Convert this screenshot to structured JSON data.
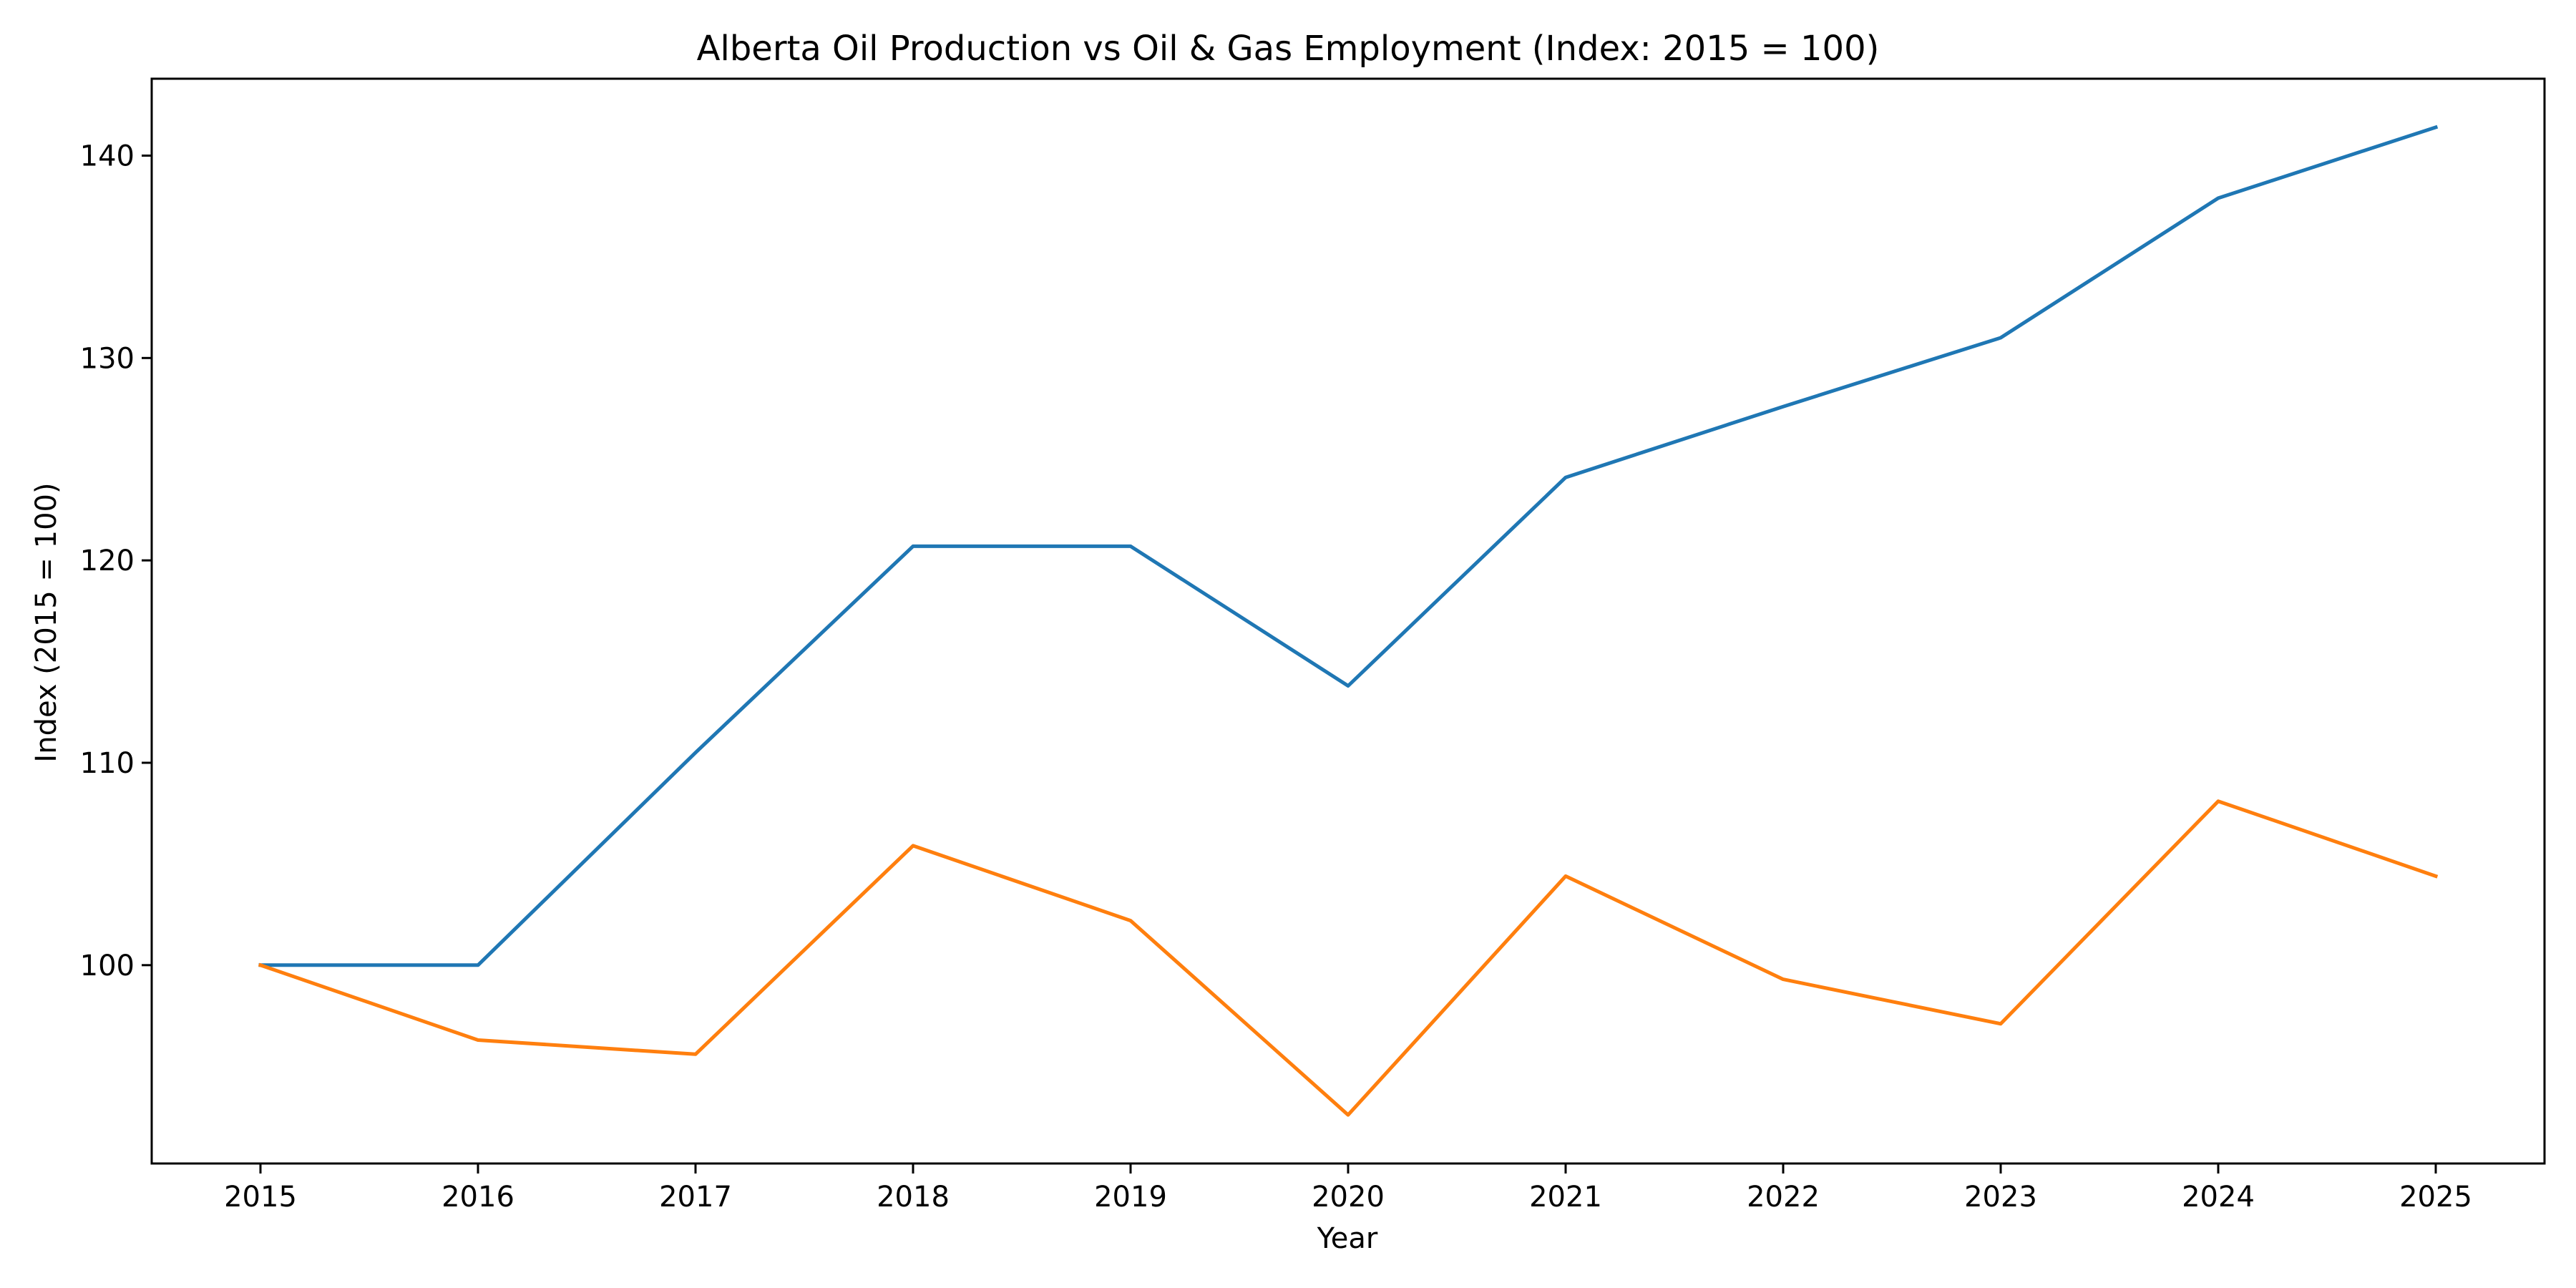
{
  "chart_data": {
    "type": "line",
    "title": "Alberta Oil Production vs Oil & Gas Employment (Index: 2015 = 100)",
    "xlabel": "Year",
    "ylabel": "Index (2015 = 100)",
    "x": [
      2015,
      2016,
      2017,
      2018,
      2019,
      2020,
      2021,
      2022,
      2023,
      2024,
      2025
    ],
    "xlim": [
      2014.5,
      2025.5
    ],
    "ylim": [
      90.2,
      143.8
    ],
    "yticks": [
      100,
      110,
      120,
      130,
      140
    ],
    "grid": false,
    "series": [
      {
        "color": "#1f77b4",
        "values": [
          100,
          100,
          110.5,
          120.7,
          120.7,
          113.8,
          124.1,
          127.6,
          131.0,
          137.9,
          141.4
        ]
      },
      {
        "color": "#ff7f0e",
        "values": [
          100,
          96.3,
          95.6,
          105.9,
          102.2,
          92.6,
          104.4,
          99.3,
          97.1,
          108.1,
          104.4
        ]
      }
    ]
  }
}
